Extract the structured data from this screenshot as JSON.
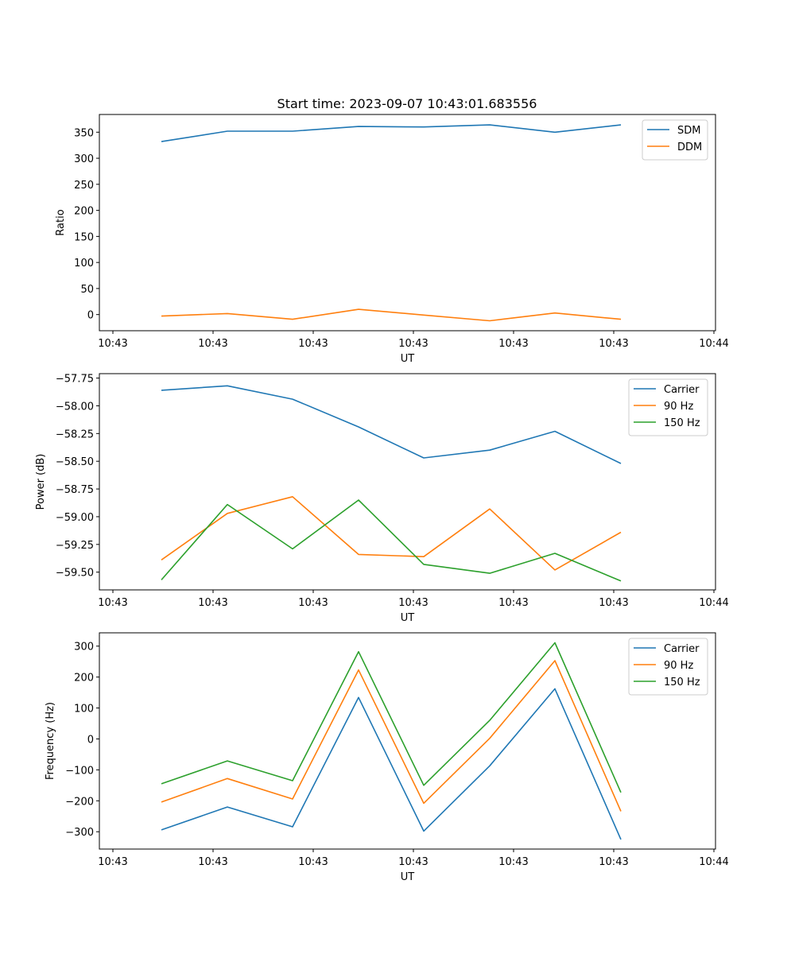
{
  "title": "Start time: 2023-09-07 10:43:01.683556",
  "chart_data": [
    {
      "type": "line",
      "title": "Start time: 2023-09-07 10:43:01.683556",
      "xlabel": "UT",
      "ylabel": "Ratio",
      "x_ticks": [
        "10:43",
        "10:43",
        "10:43",
        "10:43",
        "10:43",
        "10:43",
        "10:44"
      ],
      "ylim": [
        -31,
        384
      ],
      "y_ticks": [
        0,
        50,
        100,
        150,
        200,
        250,
        300,
        350
      ],
      "y_tick_labels": [
        "0",
        "50",
        "100",
        "150",
        "200",
        "250",
        "300",
        "350"
      ],
      "legend_position": "top-right",
      "series": [
        {
          "name": "SDM",
          "color": "#1f77b4",
          "values": [
            332,
            352,
            352,
            361,
            360,
            364,
            350,
            364
          ]
        },
        {
          "name": "DDM",
          "color": "#ff7f0e",
          "values": [
            -3,
            2,
            -9,
            10,
            -1,
            -12,
            3,
            -9
          ]
        }
      ]
    },
    {
      "type": "line",
      "xlabel": "UT",
      "ylabel": "Power (dB)",
      "x_ticks": [
        "10:43",
        "10:43",
        "10:43",
        "10:43",
        "10:43",
        "10:43",
        "10:44"
      ],
      "ylim": [
        -59.66,
        -57.71
      ],
      "y_ticks": [
        -59.5,
        -59.25,
        -59.0,
        -58.75,
        -58.5,
        -58.25,
        -58.0,
        -57.75
      ],
      "y_tick_labels": [
        "−59.50",
        "−59.25",
        "−59.00",
        "−58.75",
        "−58.50",
        "−58.25",
        "−58.00",
        "−57.75"
      ],
      "legend_position": "top-right",
      "series": [
        {
          "name": "Carrier",
          "color": "#1f77b4",
          "values": [
            -57.86,
            -57.82,
            -57.94,
            -58.19,
            -58.47,
            -58.4,
            -58.23,
            -58.52
          ]
        },
        {
          "name": "90 Hz",
          "color": "#ff7f0e",
          "values": [
            -59.39,
            -58.97,
            -58.82,
            -59.34,
            -59.36,
            -58.93,
            -59.48,
            -59.14
          ]
        },
        {
          "name": "150 Hz",
          "color": "#2ca02c",
          "values": [
            -59.57,
            -58.89,
            -59.29,
            -58.85,
            -59.43,
            -59.51,
            -59.33,
            -59.58
          ]
        }
      ]
    },
    {
      "type": "line",
      "xlabel": "UT",
      "ylabel": "Frequency (Hz)",
      "x_ticks": [
        "10:43",
        "10:43",
        "10:43",
        "10:43",
        "10:43",
        "10:43",
        "10:44"
      ],
      "ylim": [
        -356,
        343
      ],
      "y_ticks": [
        -300,
        -200,
        -100,
        0,
        100,
        200,
        300
      ],
      "y_tick_labels": [
        "−300",
        "−200",
        "−100",
        "0",
        "100",
        "200",
        "300"
      ],
      "legend_position": "top-right",
      "series": [
        {
          "name": "Carrier",
          "color": "#1f77b4",
          "values": [
            -294,
            -220,
            -284,
            134,
            -298,
            -87,
            162,
            -325
          ]
        },
        {
          "name": "90 Hz",
          "color": "#ff7f0e",
          "values": [
            -204,
            -128,
            -194,
            223,
            -208,
            2,
            253,
            -234
          ]
        },
        {
          "name": "150 Hz",
          "color": "#2ca02c",
          "values": [
            -145,
            -71,
            -135,
            282,
            -150,
            60,
            311,
            -173
          ]
        }
      ]
    }
  ]
}
